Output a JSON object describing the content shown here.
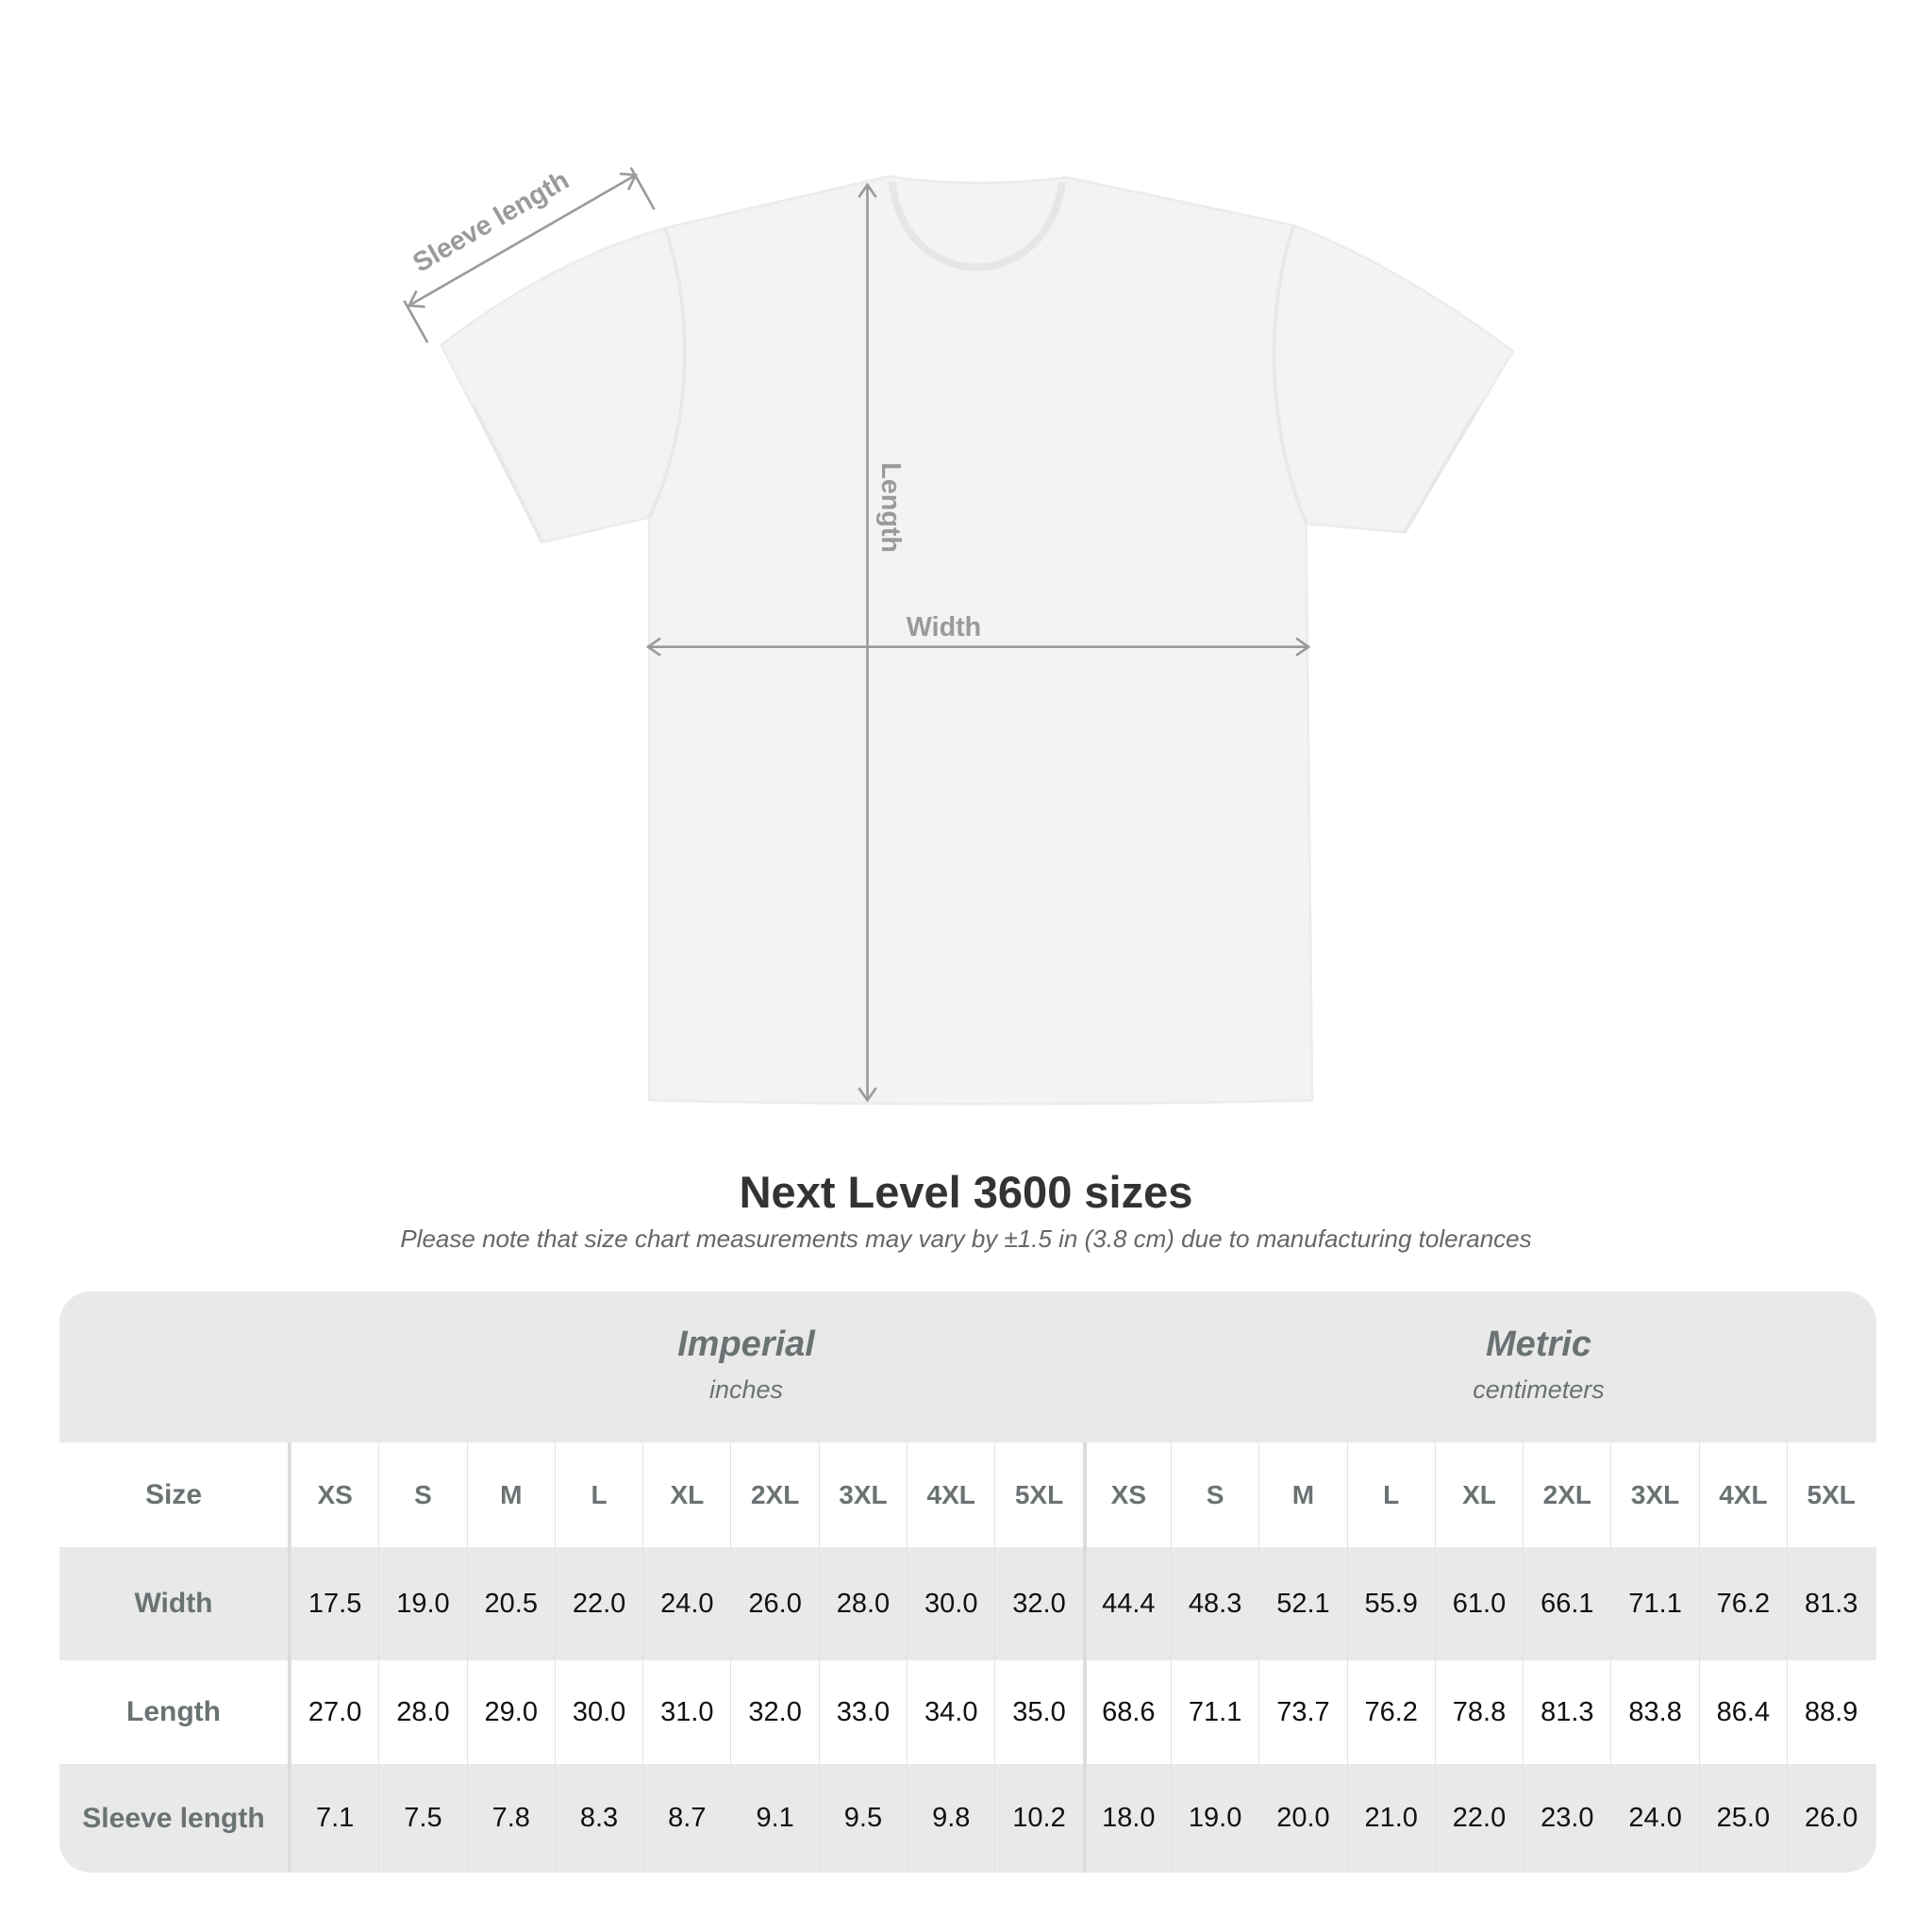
{
  "diagram": {
    "labels": {
      "sleeve": "Sleeve length",
      "length": "Length",
      "width": "Width"
    },
    "shirt_color": "#f2f2f2",
    "arrow_color": "#9a9a9a"
  },
  "title": "Next Level 3600 sizes",
  "subtitle": "Please note that size chart measurements may vary by ±1.5 in (3.8 cm) due to manufacturing tolerances",
  "table": {
    "imperial": {
      "name": "Imperial",
      "unit": "inches"
    },
    "metric": {
      "name": "Metric",
      "unit": "centimeters"
    },
    "size_label": "Size",
    "sizes": [
      "XS",
      "S",
      "M",
      "L",
      "XL",
      "2XL",
      "3XL",
      "4XL",
      "5XL"
    ],
    "rows": [
      {
        "label": "Width",
        "imperial": [
          "17.5",
          "19.0",
          "20.5",
          "22.0",
          "24.0",
          "26.0",
          "28.0",
          "30.0",
          "32.0"
        ],
        "metric": [
          "44.4",
          "48.3",
          "52.1",
          "55.9",
          "61.0",
          "66.1",
          "71.1",
          "76.2",
          "81.3"
        ]
      },
      {
        "label": "Length",
        "imperial": [
          "27.0",
          "28.0",
          "29.0",
          "30.0",
          "31.0",
          "32.0",
          "33.0",
          "34.0",
          "35.0"
        ],
        "metric": [
          "68.6",
          "71.1",
          "73.7",
          "76.2",
          "78.8",
          "81.3",
          "83.8",
          "86.4",
          "88.9"
        ]
      },
      {
        "label": "Sleeve length",
        "imperial": [
          "7.1",
          "7.5",
          "7.8",
          "8.3",
          "8.7",
          "9.1",
          "9.5",
          "9.8",
          "10.2"
        ],
        "metric": [
          "18.0",
          "19.0",
          "20.0",
          "21.0",
          "22.0",
          "23.0",
          "24.0",
          "25.0",
          "26.0"
        ]
      }
    ]
  }
}
